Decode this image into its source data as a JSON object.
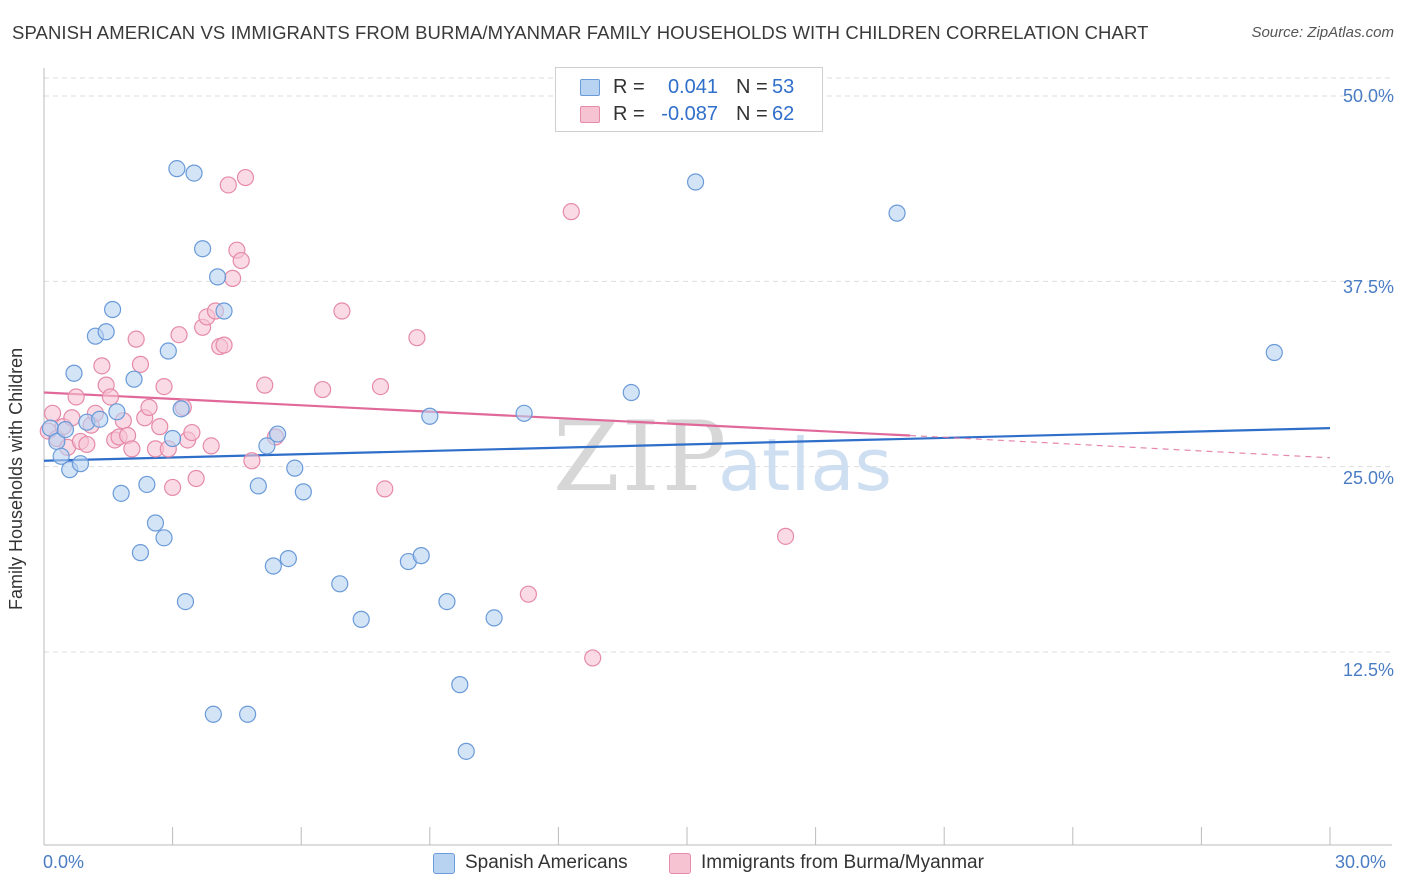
{
  "title": "SPANISH AMERICAN VS IMMIGRANTS FROM BURMA/MYANMAR FAMILY HOUSEHOLDS WITH CHILDREN CORRELATION CHART",
  "source": "Source: ZipAtlas.com",
  "watermark": {
    "zip": "ZIP",
    "atlas": "atlas"
  },
  "legend": {
    "series1": {
      "r_label": "R =",
      "r_value": "0.041",
      "n_label": "N =",
      "n_value": "53"
    },
    "series2": {
      "r_label": "R =",
      "r_value": "-0.087",
      "n_label": "N =",
      "n_value": "62"
    }
  },
  "colors": {
    "blue_fill": "#b8d2f2",
    "blue_stroke": "#6a9ad8",
    "blue_line": "#2f6fca",
    "pink_fill": "#f6c3d3",
    "pink_stroke": "#e58aa8",
    "pink_line": "#e0699a",
    "accent_text": "#4a7cc4",
    "grid": "#dddddd"
  },
  "chart_data": {
    "type": "scatter",
    "title": "SPANISH AMERICAN VS IMMIGRANTS FROM BURMA/MYANMAR FAMILY HOUSEHOLDS WITH CHILDREN CORRELATION CHART",
    "xlabel": "",
    "ylabel": "Family Households with Children",
    "xlim": [
      0,
      30
    ],
    "ylim": [
      0,
      52
    ],
    "x_tick_labels": [
      "0.0%",
      "30.0%"
    ],
    "y_ticks": [
      12.5,
      25.0,
      37.5,
      50.0
    ],
    "y_tick_labels": [
      "12.5%",
      "25.0%",
      "37.5%",
      "50.0%"
    ],
    "grid": true,
    "legend_position": "top-center",
    "series": [
      {
        "name": "Spanish Americans",
        "r": 0.041,
        "n": 53,
        "trend": {
          "x": [
            0,
            30
          ],
          "y": [
            25.4,
            27.6
          ],
          "style": "solid"
        },
        "points": [
          [
            0.15,
            27.6
          ],
          [
            0.3,
            26.7
          ],
          [
            0.4,
            25.7
          ],
          [
            0.5,
            27.5
          ],
          [
            0.6,
            24.8
          ],
          [
            0.7,
            31.3
          ],
          [
            0.85,
            25.2
          ],
          [
            1.0,
            28.0
          ],
          [
            1.2,
            33.8
          ],
          [
            1.3,
            28.2
          ],
          [
            1.45,
            34.1
          ],
          [
            1.6,
            35.6
          ],
          [
            1.7,
            28.7
          ],
          [
            1.8,
            23.2
          ],
          [
            2.1,
            30.9
          ],
          [
            2.25,
            19.2
          ],
          [
            2.4,
            23.8
          ],
          [
            2.6,
            21.2
          ],
          [
            2.8,
            20.2
          ],
          [
            2.9,
            32.8
          ],
          [
            3.0,
            26.9
          ],
          [
            3.1,
            45.1
          ],
          [
            3.2,
            28.9
          ],
          [
            3.3,
            15.9
          ],
          [
            3.5,
            44.8
          ],
          [
            3.7,
            39.7
          ],
          [
            3.95,
            8.3
          ],
          [
            4.05,
            37.8
          ],
          [
            4.2,
            35.5
          ],
          [
            4.75,
            8.3
          ],
          [
            5.0,
            23.7
          ],
          [
            5.2,
            26.4
          ],
          [
            5.35,
            18.3
          ],
          [
            5.45,
            27.2
          ],
          [
            5.7,
            18.8
          ],
          [
            5.85,
            24.9
          ],
          [
            6.05,
            23.3
          ],
          [
            6.9,
            17.1
          ],
          [
            7.4,
            14.7
          ],
          [
            8.5,
            18.6
          ],
          [
            8.8,
            19.0
          ],
          [
            9.0,
            28.4
          ],
          [
            9.4,
            15.9
          ],
          [
            9.7,
            10.3
          ],
          [
            9.85,
            5.8
          ],
          [
            10.5,
            14.8
          ],
          [
            11.2,
            28.6
          ],
          [
            13.7,
            30.0
          ],
          [
            15.2,
            44.2
          ],
          [
            19.9,
            42.1
          ],
          [
            28.7,
            32.7
          ]
        ]
      },
      {
        "name": "Immigrants from Burma/Myanmar",
        "r": -0.087,
        "n": 62,
        "trend": {
          "x": [
            0,
            20.2
          ],
          "y": [
            30.0,
            27.1
          ],
          "style": "solid",
          "dashed_extension": {
            "x": [
              20.2,
              30
            ],
            "y": [
              27.1,
              25.6
            ]
          }
        },
        "points": [
          [
            0.1,
            27.4
          ],
          [
            0.2,
            28.6
          ],
          [
            0.3,
            26.9
          ],
          [
            0.45,
            27.7
          ],
          [
            0.55,
            26.3
          ],
          [
            0.65,
            28.3
          ],
          [
            0.75,
            29.7
          ],
          [
            0.85,
            26.7
          ],
          [
            1.0,
            26.5
          ],
          [
            1.1,
            27.8
          ],
          [
            1.2,
            28.6
          ],
          [
            1.35,
            31.8
          ],
          [
            1.45,
            30.5
          ],
          [
            1.55,
            29.7
          ],
          [
            1.65,
            26.8
          ],
          [
            1.75,
            27.0
          ],
          [
            1.85,
            28.1
          ],
          [
            1.95,
            27.1
          ],
          [
            2.05,
            26.2
          ],
          [
            2.15,
            33.6
          ],
          [
            2.25,
            31.9
          ],
          [
            2.35,
            28.3
          ],
          [
            2.45,
            29.0
          ],
          [
            2.6,
            26.2
          ],
          [
            2.7,
            27.7
          ],
          [
            2.8,
            30.4
          ],
          [
            2.9,
            26.2
          ],
          [
            3.0,
            23.6
          ],
          [
            3.15,
            33.9
          ],
          [
            3.25,
            29.0
          ],
          [
            3.35,
            26.8
          ],
          [
            3.45,
            27.3
          ],
          [
            3.55,
            24.2
          ],
          [
            3.7,
            34.4
          ],
          [
            3.8,
            35.1
          ],
          [
            3.9,
            26.4
          ],
          [
            4.0,
            35.5
          ],
          [
            4.1,
            33.1
          ],
          [
            4.2,
            33.2
          ],
          [
            4.3,
            44.0
          ],
          [
            4.4,
            37.7
          ],
          [
            4.5,
            39.6
          ],
          [
            4.6,
            38.9
          ],
          [
            4.7,
            44.5
          ],
          [
            4.85,
            25.4
          ],
          [
            5.15,
            30.5
          ],
          [
            5.4,
            27.0
          ],
          [
            6.5,
            30.2
          ],
          [
            6.95,
            35.5
          ],
          [
            7.85,
            30.4
          ],
          [
            7.95,
            23.5
          ],
          [
            8.7,
            33.7
          ],
          [
            11.3,
            16.4
          ],
          [
            12.3,
            42.2
          ],
          [
            12.8,
            12.1
          ],
          [
            17.3,
            20.3
          ]
        ]
      }
    ]
  },
  "bottom_legend": {
    "series1_label": "Spanish Americans",
    "series2_label": "Immigrants from Burma/Myanmar"
  }
}
